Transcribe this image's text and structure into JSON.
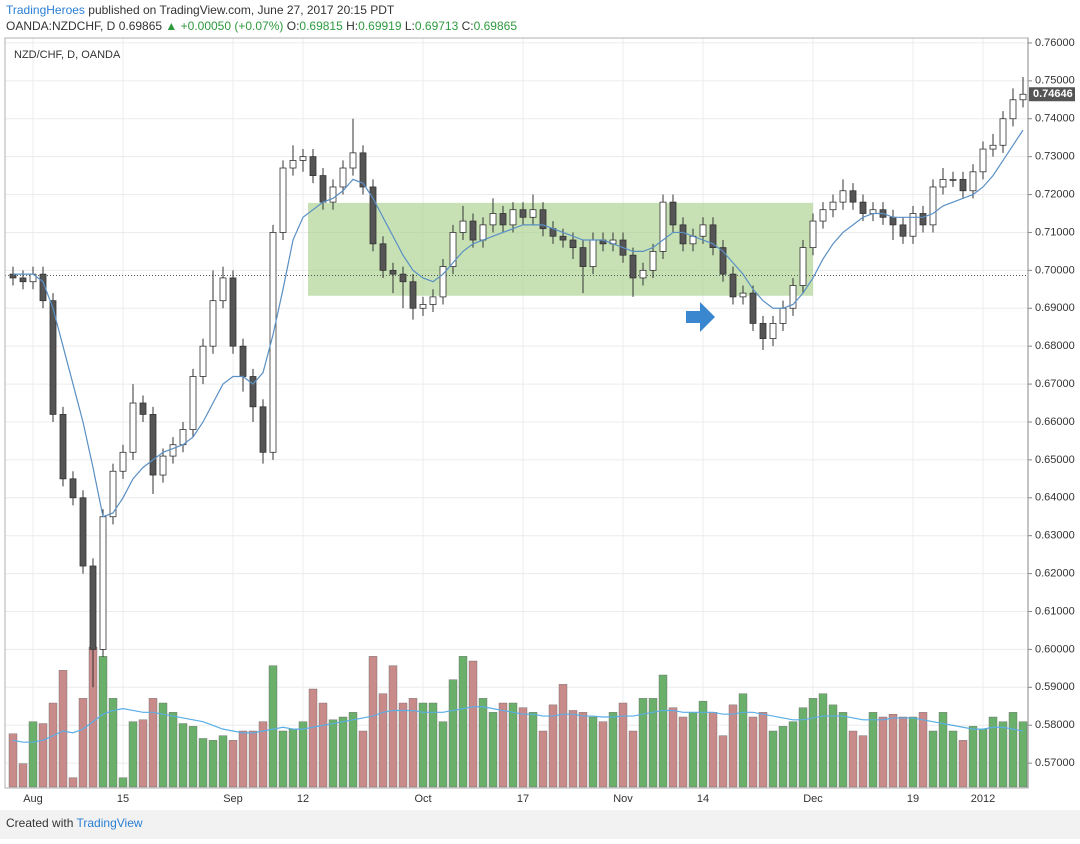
{
  "header": {
    "author": "TradingHeroes",
    "published": "published on TradingView.com, June 27, 2017 20:15 PDT",
    "symbol": "OANDA:NZDCHF, D",
    "price": 0.69865,
    "change": "▲ +0.00050 (+0.07%)",
    "ohlc": [
      {
        "label": "O:",
        "value": 0.69815
      },
      {
        "label": "H:",
        "value": 0.69919
      },
      {
        "label": "L:",
        "value": 0.69713
      },
      {
        "label": "C:",
        "value": 0.69865
      }
    ]
  },
  "footer": {
    "text": "Created with",
    "brand": "TradingView"
  },
  "chart_data": {
    "type": "candlestick",
    "title": "NZD/CHF, D, OANDA",
    "categories": [
      null,
      null,
      "Aug",
      null,
      null,
      null,
      null,
      null,
      null,
      null,
      null,
      "15",
      null,
      null,
      null,
      null,
      null,
      null,
      null,
      null,
      null,
      null,
      "Sep",
      null,
      null,
      null,
      null,
      null,
      null,
      "12",
      null,
      null,
      null,
      null,
      null,
      null,
      null,
      null,
      null,
      null,
      null,
      "Oct",
      null,
      null,
      null,
      null,
      null,
      null,
      null,
      null,
      null,
      "17",
      null,
      null,
      null,
      null,
      null,
      null,
      null,
      null,
      null,
      "Nov",
      null,
      null,
      null,
      null,
      null,
      null,
      null,
      "14",
      null,
      null,
      null,
      null,
      null,
      null,
      null,
      null,
      null,
      null,
      "Dec",
      null,
      null,
      null,
      null,
      null,
      null,
      null,
      null,
      null,
      "19",
      null,
      null,
      null,
      null,
      null,
      null,
      "2012",
      null,
      null,
      null,
      null
    ],
    "open": [
      0.699,
      0.698,
      0.697,
      0.699,
      0.692,
      0.662,
      0.645,
      0.64,
      0.622,
      0.6,
      0.635,
      0.647,
      0.652,
      0.665,
      0.662,
      0.646,
      0.651,
      0.654,
      0.658,
      0.672,
      0.68,
      0.692,
      0.698,
      0.68,
      0.672,
      0.664,
      0.652,
      0.71,
      0.727,
      0.729,
      0.73,
      0.725,
      0.718,
      0.722,
      0.727,
      0.731,
      0.722,
      0.707,
      0.7,
      0.699,
      0.697,
      0.69,
      0.691,
      0.693,
      0.701,
      0.71,
      0.713,
      0.708,
      0.712,
      0.715,
      0.712,
      0.716,
      0.714,
      0.716,
      0.711,
      0.709,
      0.708,
      0.706,
      0.701,
      0.708,
      0.707,
      0.708,
      0.704,
      0.698,
      0.7,
      0.705,
      0.718,
      0.712,
      0.707,
      0.709,
      0.712,
      0.706,
      0.699,
      0.693,
      0.694,
      0.686,
      0.682,
      0.686,
      0.69,
      0.696,
      0.706,
      0.713,
      0.716,
      0.718,
      0.721,
      0.718,
      0.715,
      0.716,
      0.714,
      0.712,
      0.709,
      0.715,
      0.712,
      0.722,
      0.724,
      0.724,
      0.721,
      0.726,
      0.732,
      0.733,
      0.74,
      0.745
    ],
    "high": [
      0.701,
      0.7,
      0.701,
      0.701,
      0.694,
      0.664,
      0.647,
      0.642,
      0.624,
      0.637,
      0.649,
      0.654,
      0.67,
      0.667,
      0.664,
      0.653,
      0.656,
      0.66,
      0.674,
      0.682,
      0.7,
      0.701,
      0.7,
      0.682,
      0.674,
      0.666,
      0.712,
      0.729,
      0.733,
      0.732,
      0.732,
      0.727,
      0.724,
      0.729,
      0.74,
      0.733,
      0.724,
      0.709,
      0.702,
      0.701,
      0.699,
      0.693,
      0.695,
      0.703,
      0.712,
      0.717,
      0.715,
      0.714,
      0.719,
      0.717,
      0.718,
      0.718,
      0.72,
      0.718,
      0.713,
      0.711,
      0.71,
      0.708,
      0.71,
      0.71,
      0.71,
      0.71,
      0.706,
      0.702,
      0.707,
      0.72,
      0.72,
      0.714,
      0.711,
      0.714,
      0.714,
      0.708,
      0.701,
      0.696,
      0.696,
      0.688,
      0.688,
      0.692,
      0.698,
      0.708,
      0.715,
      0.718,
      0.72,
      0.724,
      0.723,
      0.72,
      0.718,
      0.718,
      0.716,
      0.714,
      0.717,
      0.717,
      0.724,
      0.727,
      0.726,
      0.726,
      0.728,
      0.734,
      0.736,
      0.742,
      0.748,
      0.751
    ],
    "low": [
      0.696,
      0.695,
      0.695,
      0.69,
      0.66,
      0.643,
      0.638,
      0.62,
      0.59,
      0.598,
      0.633,
      0.645,
      0.65,
      0.66,
      0.641,
      0.644,
      0.649,
      0.652,
      0.656,
      0.67,
      0.678,
      0.69,
      0.678,
      0.668,
      0.66,
      0.649,
      0.65,
      0.708,
      0.725,
      0.726,
      0.723,
      0.716,
      0.716,
      0.72,
      0.725,
      0.72,
      0.705,
      0.698,
      0.694,
      0.69,
      0.687,
      0.688,
      0.689,
      0.691,
      0.699,
      0.708,
      0.706,
      0.706,
      0.71,
      0.71,
      0.71,
      0.712,
      0.712,
      0.709,
      0.707,
      0.706,
      0.703,
      0.694,
      0.699,
      0.705,
      0.705,
      0.702,
      0.693,
      0.696,
      0.698,
      0.703,
      0.71,
      0.705,
      0.705,
      0.707,
      0.704,
      0.697,
      0.691,
      0.691,
      0.684,
      0.679,
      0.68,
      0.684,
      0.688,
      0.694,
      0.704,
      0.711,
      0.714,
      0.716,
      0.716,
      0.713,
      0.713,
      0.712,
      0.708,
      0.707,
      0.707,
      0.71,
      0.71,
      0.72,
      0.722,
      0.719,
      0.719,
      0.724,
      0.73,
      0.731,
      0.738,
      0.743
    ],
    "close": [
      0.698,
      0.697,
      0.699,
      0.692,
      0.662,
      0.645,
      0.64,
      0.622,
      0.6,
      0.635,
      0.647,
      0.652,
      0.665,
      0.662,
      0.646,
      0.651,
      0.654,
      0.658,
      0.672,
      0.68,
      0.692,
      0.698,
      0.68,
      0.672,
      0.664,
      0.652,
      0.71,
      0.727,
      0.729,
      0.73,
      0.725,
      0.718,
      0.722,
      0.727,
      0.731,
      0.722,
      0.707,
      0.7,
      0.699,
      0.697,
      0.69,
      0.691,
      0.693,
      0.701,
      0.71,
      0.713,
      0.708,
      0.712,
      0.715,
      0.712,
      0.716,
      0.714,
      0.716,
      0.711,
      0.709,
      0.708,
      0.706,
      0.701,
      0.708,
      0.707,
      0.708,
      0.704,
      0.698,
      0.7,
      0.705,
      0.718,
      0.712,
      0.707,
      0.709,
      0.712,
      0.706,
      0.699,
      0.693,
      0.694,
      0.686,
      0.682,
      0.686,
      0.69,
      0.696,
      0.706,
      0.713,
      0.716,
      0.718,
      0.721,
      0.718,
      0.715,
      0.716,
      0.714,
      0.712,
      0.709,
      0.715,
      0.712,
      0.722,
      0.724,
      0.724,
      0.721,
      0.726,
      0.732,
      0.733,
      0.74,
      0.745,
      0.74646
    ],
    "ma": [
      0.699,
      0.699,
      0.699,
      0.697,
      0.69,
      0.68,
      0.67,
      0.66,
      0.648,
      0.635,
      0.636,
      0.64,
      0.645,
      0.648,
      0.65,
      0.652,
      0.653,
      0.654,
      0.656,
      0.66,
      0.665,
      0.67,
      0.672,
      0.672,
      0.67,
      0.673,
      0.683,
      0.695,
      0.708,
      0.714,
      0.716,
      0.718,
      0.719,
      0.721,
      0.724,
      0.723,
      0.719,
      0.714,
      0.709,
      0.704,
      0.7,
      0.698,
      0.697,
      0.699,
      0.702,
      0.705,
      0.707,
      0.708,
      0.709,
      0.71,
      0.711,
      0.712,
      0.712,
      0.712,
      0.711,
      0.71,
      0.709,
      0.708,
      0.708,
      0.708,
      0.707,
      0.706,
      0.705,
      0.705,
      0.706,
      0.708,
      0.71,
      0.71,
      0.709,
      0.708,
      0.707,
      0.705,
      0.702,
      0.699,
      0.695,
      0.692,
      0.69,
      0.69,
      0.691,
      0.694,
      0.698,
      0.703,
      0.707,
      0.71,
      0.712,
      0.714,
      0.715,
      0.715,
      0.714,
      0.714,
      0.714,
      0.714,
      0.715,
      0.717,
      0.718,
      0.719,
      0.72,
      0.722,
      0.725,
      0.729,
      0.733,
      0.737
    ],
    "volume": [
      57,
      25,
      70,
      68,
      90,
      125,
      10,
      95,
      150,
      140,
      95,
      10,
      70,
      72,
      95,
      90,
      80,
      68,
      65,
      52,
      50,
      55,
      50,
      60,
      60,
      70,
      130,
      60,
      62,
      70,
      105,
      90,
      72,
      75,
      80,
      60,
      140,
      100,
      130,
      90,
      95,
      90,
      90,
      70,
      115,
      140,
      135,
      95,
      80,
      90,
      90,
      85,
      80,
      60,
      88,
      110,
      82,
      80,
      75,
      70,
      80,
      90,
      60,
      95,
      95,
      120,
      85,
      75,
      80,
      92,
      80,
      55,
      88,
      100,
      75,
      80,
      60,
      65,
      70,
      85,
      95,
      100,
      88,
      80,
      60,
      55,
      80,
      75,
      78,
      75,
      75,
      80,
      60,
      80,
      60,
      50,
      65,
      62,
      75,
      70,
      80,
      70
    ],
    "volume_ma": [
      50,
      48,
      48,
      50,
      55,
      60,
      58,
      62,
      70,
      78,
      82,
      84,
      82,
      80,
      80,
      78,
      76,
      74,
      72,
      70,
      66,
      62,
      60,
      58,
      58,
      60,
      62,
      64,
      62,
      62,
      64,
      66,
      68,
      70,
      72,
      74,
      76,
      80,
      82,
      82,
      82,
      80,
      80,
      80,
      82,
      84,
      86,
      86,
      84,
      82,
      80,
      78,
      78,
      76,
      76,
      78,
      78,
      76,
      76,
      75,
      75,
      76,
      76,
      78,
      80,
      82,
      82,
      80,
      80,
      80,
      80,
      78,
      78,
      80,
      80,
      78,
      76,
      74,
      72,
      72,
      74,
      76,
      76,
      76,
      74,
      72,
      72,
      72,
      74,
      74,
      74,
      72,
      70,
      68,
      66,
      64,
      62,
      62,
      64,
      64,
      62,
      60
    ],
    "highlight_box": {
      "from": 30,
      "to": 80,
      "top": 0.7178,
      "bottom": 0.6933,
      "color": "#a9d18e"
    },
    "ylim": [
      0.5637,
      0.7613
    ],
    "yticks": [
      {
        "value": 0.76,
        "label": "0.76000"
      },
      {
        "value": 0.75,
        "label": "0.75000"
      },
      {
        "value": 0.74,
        "label": "0.74000"
      },
      {
        "value": 0.73,
        "label": "0.73000"
      },
      {
        "value": 0.72,
        "label": "0.72000"
      },
      {
        "value": 0.71,
        "label": "0.71000"
      },
      {
        "value": 0.7,
        "label": "0.70000"
      },
      {
        "value": 0.69,
        "label": "0.69000"
      },
      {
        "value": 0.68,
        "label": "0.68000"
      },
      {
        "value": 0.67,
        "label": "0.67000"
      },
      {
        "value": 0.66,
        "label": "0.66000"
      },
      {
        "value": 0.65,
        "label": "0.65000"
      },
      {
        "value": 0.64,
        "label": "0.64000"
      },
      {
        "value": 0.63,
        "label": "0.63000"
      },
      {
        "value": 0.62,
        "label": "0.62000"
      },
      {
        "value": 0.61,
        "label": "0.61000"
      },
      {
        "value": 0.6,
        "label": "0.60000"
      },
      {
        "value": 0.59,
        "label": "0.59000"
      },
      {
        "value": 0.58,
        "label": "0.58000"
      },
      {
        "value": 0.57,
        "label": "0.57000"
      }
    ],
    "grid": true,
    "up_color": "#ffffff",
    "down_color": "#555555",
    "wick_color": "#333333",
    "volume_up_color": "#6aaf6a",
    "volume_down_color": "#c98a8a",
    "ma_color": "#5a8fc4",
    "volume_ma_color": "#5aaee6"
  }
}
